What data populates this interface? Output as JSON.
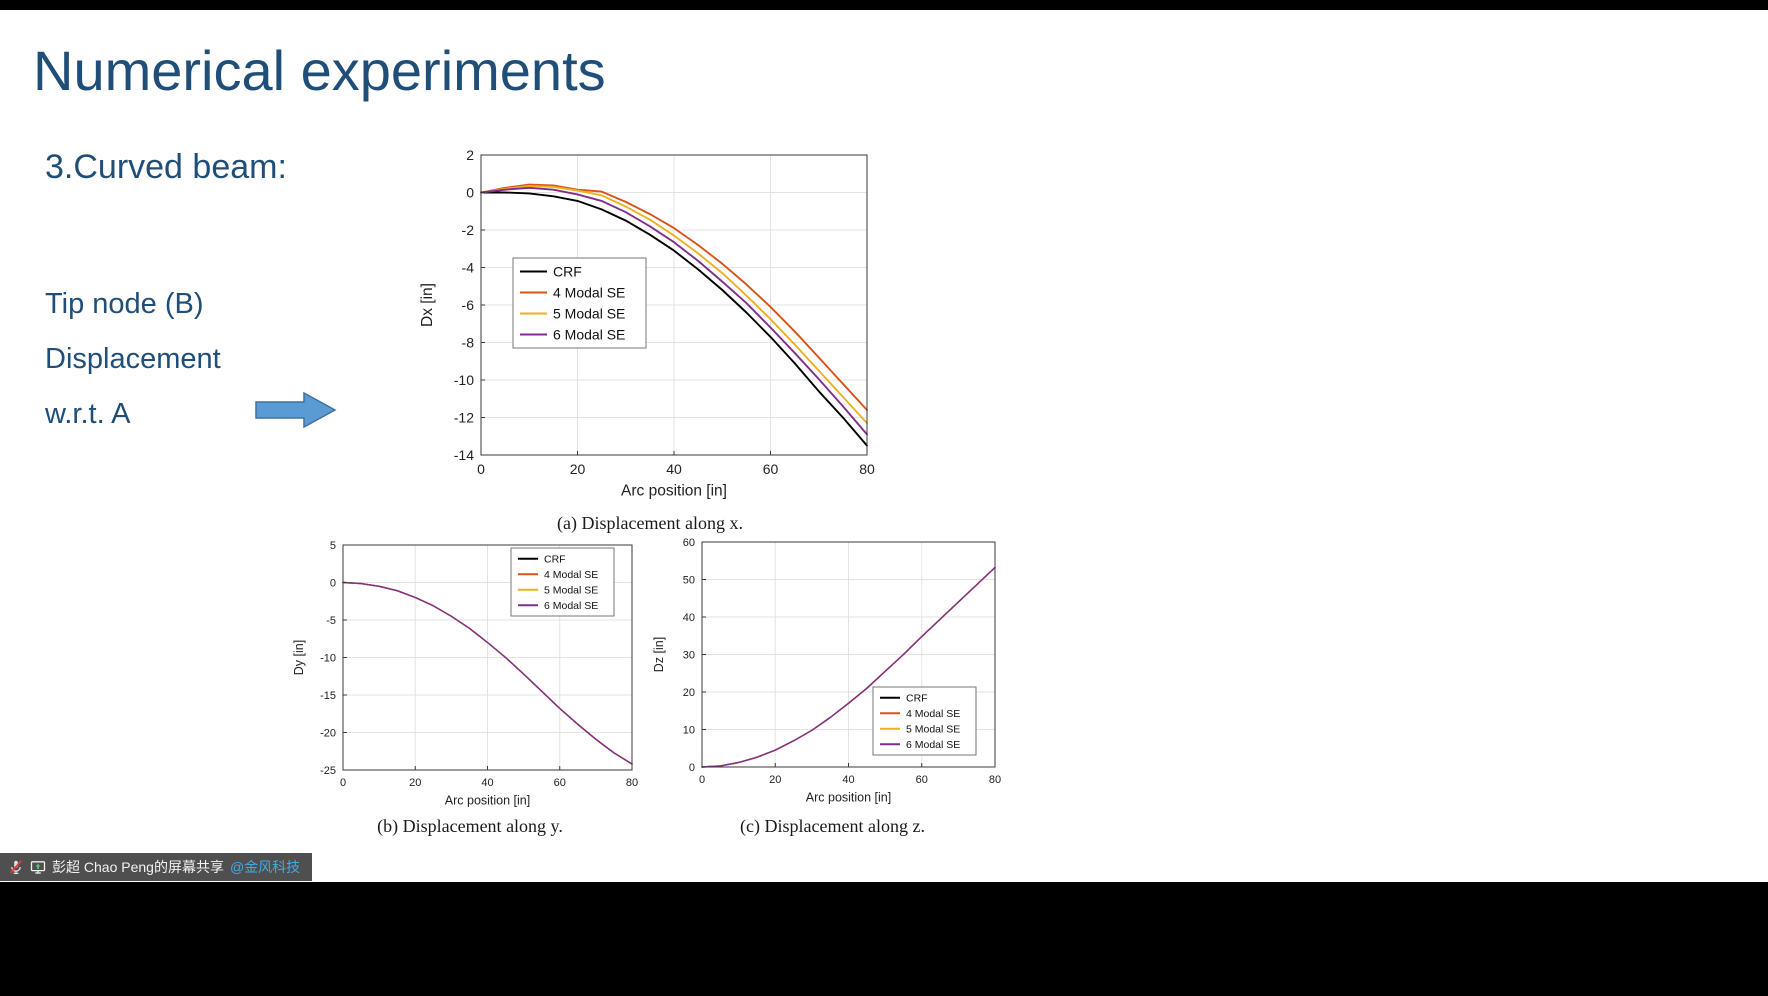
{
  "slide": {
    "title": "Numerical experiments",
    "section": "3.Curved beam:",
    "notes": [
      "Tip node (B)",
      "Displacement",
      "w.r.t. A"
    ],
    "text_color": "#1F4E79",
    "arrow_fill": "#5B9BD5",
    "arrow_border": "#41719C"
  },
  "share_bar": {
    "text": "彭超 Chao Peng的屏幕共享",
    "link": "@金风科技",
    "link_color": "#45A8E4",
    "background": "#4A4A4A",
    "icons": [
      "muted-mic-icon",
      "screen-share-icon"
    ]
  },
  "chart_data": [
    {
      "id": "a",
      "type": "line",
      "caption": "(a) Displacement along x.",
      "xlabel": "Arc position [in]",
      "ylabel": "Dx [in]",
      "xlim": [
        0,
        80
      ],
      "ylim": [
        -14,
        2
      ],
      "xticks": [
        0,
        20,
        40,
        60,
        80
      ],
      "yticks": [
        2,
        0,
        -2,
        -4,
        -6,
        -8,
        -10,
        -12,
        -14
      ],
      "grid": true,
      "legend_pos": "middle-left",
      "x": [
        0,
        5,
        10,
        15,
        20,
        25,
        30,
        35,
        40,
        45,
        50,
        55,
        60,
        65,
        70,
        75,
        80
      ],
      "series": [
        {
          "name": "CRF",
          "color": "#000000",
          "y": [
            0,
            0,
            -0.05,
            -0.2,
            -0.45,
            -0.9,
            -1.5,
            -2.25,
            -3.1,
            -4.1,
            -5.2,
            -6.4,
            -7.7,
            -9.1,
            -10.6,
            -12.0,
            -13.5
          ]
        },
        {
          "name": "4 Modal SE",
          "color": "#D95319",
          "y": [
            0,
            0.25,
            0.42,
            0.38,
            0.15,
            0.05,
            -0.5,
            -1.15,
            -1.9,
            -2.8,
            -3.8,
            -4.9,
            -6.1,
            -7.4,
            -8.8,
            -10.2,
            -11.6
          ]
        },
        {
          "name": "5 Modal SE",
          "color": "#EDB120",
          "y": [
            0,
            0.2,
            0.35,
            0.3,
            0.1,
            -0.15,
            -0.75,
            -1.45,
            -2.3,
            -3.25,
            -4.3,
            -5.5,
            -6.75,
            -8.1,
            -9.5,
            -10.9,
            -12.3
          ]
        },
        {
          "name": "6 Modal SE",
          "color": "#7E2F8E",
          "y": [
            0,
            0.15,
            0.25,
            0.15,
            -0.1,
            -0.45,
            -1.05,
            -1.8,
            -2.65,
            -3.65,
            -4.75,
            -5.9,
            -7.2,
            -8.55,
            -9.95,
            -11.4,
            -12.9
          ]
        }
      ]
    },
    {
      "id": "b",
      "type": "line",
      "caption": "(b) Displacement along y.",
      "xlabel": "Arc position [in]",
      "ylabel": "Dy [in]",
      "xlim": [
        0,
        80
      ],
      "ylim": [
        -25,
        5
      ],
      "xticks": [
        0,
        20,
        40,
        60,
        80
      ],
      "yticks": [
        5,
        0,
        -5,
        -10,
        -15,
        -20,
        -25
      ],
      "grid": true,
      "legend_pos": "top-right",
      "x": [
        0,
        5,
        10,
        15,
        20,
        25,
        30,
        35,
        40,
        45,
        50,
        55,
        60,
        65,
        70,
        75,
        80
      ],
      "series": [
        {
          "name": "CRF",
          "color": "#000000",
          "y": [
            0,
            -0.15,
            -0.5,
            -1.1,
            -2.0,
            -3.1,
            -4.5,
            -6.1,
            -8.0,
            -10.0,
            -12.2,
            -14.5,
            -16.8,
            -18.9,
            -20.9,
            -22.7,
            -24.2
          ]
        },
        {
          "name": "4 Modal SE",
          "color": "#D95319",
          "y": [
            0,
            -0.15,
            -0.5,
            -1.1,
            -2.0,
            -3.1,
            -4.5,
            -6.1,
            -8.0,
            -10.0,
            -12.2,
            -14.5,
            -16.8,
            -18.9,
            -20.9,
            -22.7,
            -24.2
          ]
        },
        {
          "name": "5 Modal SE",
          "color": "#EDB120",
          "y": [
            0,
            -0.15,
            -0.5,
            -1.1,
            -2.0,
            -3.1,
            -4.5,
            -6.1,
            -8.0,
            -10.0,
            -12.2,
            -14.5,
            -16.8,
            -18.9,
            -20.9,
            -22.7,
            -24.2
          ]
        },
        {
          "name": "6 Modal SE",
          "color": "#7E2F8E",
          "y": [
            0,
            -0.15,
            -0.5,
            -1.1,
            -2.0,
            -3.1,
            -4.5,
            -6.1,
            -8.0,
            -10.0,
            -12.2,
            -14.5,
            -16.8,
            -18.9,
            -20.9,
            -22.7,
            -24.2
          ]
        }
      ]
    },
    {
      "id": "c",
      "type": "line",
      "caption": "(c) Displacement along z.",
      "xlabel": "Arc position [in]",
      "ylabel": "Dz [in]",
      "xlim": [
        0,
        80
      ],
      "ylim": [
        0,
        60
      ],
      "xticks": [
        0,
        20,
        40,
        60,
        80
      ],
      "yticks": [
        0,
        10,
        20,
        30,
        40,
        50,
        60
      ],
      "grid": true,
      "legend_pos": "bottom-right",
      "x": [
        0,
        5,
        10,
        15,
        20,
        25,
        30,
        35,
        40,
        45,
        50,
        55,
        60,
        65,
        70,
        75,
        80
      ],
      "series": [
        {
          "name": "CRF",
          "color": "#000000",
          "y": [
            0,
            0.3,
            1.2,
            2.6,
            4.5,
            7.0,
            9.8,
            13.2,
            17.0,
            21.0,
            25.5,
            30.0,
            34.8,
            39.4,
            44.0,
            48.6,
            53.2
          ]
        },
        {
          "name": "4 Modal SE",
          "color": "#D95319",
          "y": [
            0,
            0.3,
            1.2,
            2.6,
            4.5,
            7.0,
            9.8,
            13.2,
            17.0,
            21.0,
            25.5,
            30.0,
            34.8,
            39.4,
            44.0,
            48.6,
            53.2
          ]
        },
        {
          "name": "5 Modal SE",
          "color": "#EDB120",
          "y": [
            0,
            0.3,
            1.2,
            2.6,
            4.5,
            7.0,
            9.8,
            13.2,
            17.0,
            21.0,
            25.5,
            30.0,
            34.8,
            39.4,
            44.0,
            48.6,
            53.2
          ]
        },
        {
          "name": "6 Modal SE",
          "color": "#7E2F8E",
          "y": [
            0,
            0.3,
            1.2,
            2.6,
            4.5,
            7.0,
            9.8,
            13.2,
            17.0,
            21.0,
            25.5,
            30.0,
            34.8,
            39.4,
            44.0,
            48.6,
            53.2
          ]
        }
      ]
    }
  ]
}
